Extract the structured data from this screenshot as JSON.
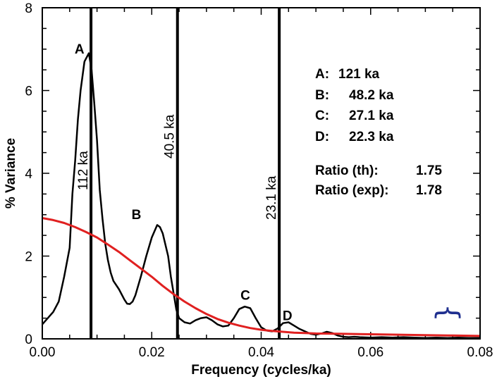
{
  "chart_data": {
    "type": "line",
    "xlabel": "Frequency (cycles/ka)",
    "ylabel": "% Variance",
    "xlim": [
      0.0,
      0.08
    ],
    "ylim": [
      0,
      8
    ],
    "x_ticks": [
      "0.00",
      "0.02",
      "0.04",
      "0.06",
      "0.08"
    ],
    "y_ticks": [
      "0",
      "2",
      "4",
      "6",
      "8"
    ],
    "series": [
      {
        "color": "#000000",
        "points": [
          [
            0.0,
            0.35
          ],
          [
            0.001,
            0.5
          ],
          [
            0.002,
            0.65
          ],
          [
            0.003,
            0.9
          ],
          [
            0.004,
            1.5
          ],
          [
            0.005,
            2.2
          ],
          [
            0.0055,
            3.5
          ],
          [
            0.006,
            4.3
          ],
          [
            0.0065,
            5.3
          ],
          [
            0.007,
            6.0
          ],
          [
            0.0077,
            6.7
          ],
          [
            0.0085,
            6.9
          ],
          [
            0.009,
            6.5
          ],
          [
            0.0095,
            5.7
          ],
          [
            0.01,
            4.8
          ],
          [
            0.0105,
            3.6
          ],
          [
            0.011,
            2.9
          ],
          [
            0.0115,
            2.3
          ],
          [
            0.012,
            1.9
          ],
          [
            0.0125,
            1.6
          ],
          [
            0.013,
            1.4
          ],
          [
            0.014,
            1.2
          ],
          [
            0.015,
            0.95
          ],
          [
            0.0155,
            0.85
          ],
          [
            0.016,
            0.84
          ],
          [
            0.0165,
            0.9
          ],
          [
            0.017,
            1.05
          ],
          [
            0.018,
            1.5
          ],
          [
            0.019,
            2.0
          ],
          [
            0.02,
            2.45
          ],
          [
            0.021,
            2.75
          ],
          [
            0.0215,
            2.7
          ],
          [
            0.022,
            2.55
          ],
          [
            0.023,
            2.0
          ],
          [
            0.0235,
            1.5
          ],
          [
            0.024,
            1.1
          ],
          [
            0.0245,
            0.7
          ],
          [
            0.025,
            0.5
          ],
          [
            0.026,
            0.4
          ],
          [
            0.027,
            0.37
          ],
          [
            0.028,
            0.45
          ],
          [
            0.029,
            0.5
          ],
          [
            0.03,
            0.52
          ],
          [
            0.031,
            0.45
          ],
          [
            0.032,
            0.35
          ],
          [
            0.033,
            0.3
          ],
          [
            0.034,
            0.32
          ],
          [
            0.035,
            0.5
          ],
          [
            0.036,
            0.72
          ],
          [
            0.037,
            0.78
          ],
          [
            0.038,
            0.74
          ],
          [
            0.039,
            0.5
          ],
          [
            0.04,
            0.28
          ],
          [
            0.041,
            0.2
          ],
          [
            0.042,
            0.18
          ],
          [
            0.043,
            0.25
          ],
          [
            0.044,
            0.38
          ],
          [
            0.045,
            0.4
          ],
          [
            0.046,
            0.32
          ],
          [
            0.047,
            0.24
          ],
          [
            0.048,
            0.18
          ],
          [
            0.049,
            0.12
          ],
          [
            0.05,
            0.1
          ],
          [
            0.051,
            0.13
          ],
          [
            0.052,
            0.17
          ],
          [
            0.053,
            0.14
          ],
          [
            0.054,
            0.08
          ],
          [
            0.055,
            0.05
          ],
          [
            0.056,
            0.04
          ],
          [
            0.057,
            0.05
          ],
          [
            0.058,
            0.04
          ],
          [
            0.06,
            0.03
          ],
          [
            0.062,
            0.04
          ],
          [
            0.064,
            0.03
          ],
          [
            0.066,
            0.04
          ],
          [
            0.068,
            0.03
          ],
          [
            0.07,
            0.02
          ],
          [
            0.072,
            0.03
          ],
          [
            0.074,
            0.02
          ],
          [
            0.076,
            0.03
          ],
          [
            0.078,
            0.02
          ],
          [
            0.08,
            0.02
          ]
        ]
      },
      {
        "color": "#e02020",
        "points": [
          [
            0.0,
            2.92
          ],
          [
            0.002,
            2.87
          ],
          [
            0.004,
            2.8
          ],
          [
            0.006,
            2.7
          ],
          [
            0.008,
            2.58
          ],
          [
            0.01,
            2.45
          ],
          [
            0.012,
            2.28
          ],
          [
            0.014,
            2.1
          ],
          [
            0.016,
            1.9
          ],
          [
            0.018,
            1.7
          ],
          [
            0.02,
            1.5
          ],
          [
            0.022,
            1.28
          ],
          [
            0.024,
            1.08
          ],
          [
            0.026,
            0.9
          ],
          [
            0.028,
            0.74
          ],
          [
            0.03,
            0.6
          ],
          [
            0.032,
            0.48
          ],
          [
            0.034,
            0.39
          ],
          [
            0.036,
            0.32
          ],
          [
            0.038,
            0.26
          ],
          [
            0.04,
            0.22
          ],
          [
            0.042,
            0.19
          ],
          [
            0.044,
            0.17
          ],
          [
            0.046,
            0.15
          ],
          [
            0.048,
            0.14
          ],
          [
            0.05,
            0.13
          ],
          [
            0.055,
            0.12
          ],
          [
            0.06,
            0.11
          ],
          [
            0.065,
            0.1
          ],
          [
            0.07,
            0.09
          ],
          [
            0.075,
            0.08
          ],
          [
            0.08,
            0.07
          ]
        ]
      }
    ],
    "vertical_lines": [
      {
        "x": 0.0089,
        "label": "112 ka"
      },
      {
        "x": 0.0247,
        "label": "40.5 ka"
      },
      {
        "x": 0.0433,
        "label": "23.1 ka"
      }
    ],
    "peak_labels": [
      {
        "label": "A",
        "x": 0.0068,
        "y": 7.0
      },
      {
        "label": "B",
        "x": 0.0172,
        "y": 3.0
      },
      {
        "label": "C",
        "x": 0.0371,
        "y": 1.05
      },
      {
        "label": "D",
        "x": 0.0448,
        "y": 0.55
      }
    ],
    "info_lines": [
      {
        "key": "A:",
        "value": "121 ka"
      },
      {
        "key": "B:",
        "value": "48.2 ka"
      },
      {
        "key": "C:",
        "value": "27.1 ka"
      },
      {
        "key": "D:",
        "value": "22.3 ka"
      },
      {
        "key": "Ratio (th):",
        "value": "1.75"
      },
      {
        "key": "Ratio (exp):",
        "value": "1.78"
      }
    ],
    "brace": {
      "symbol": "{",
      "color": "#1f2f8f"
    }
  }
}
